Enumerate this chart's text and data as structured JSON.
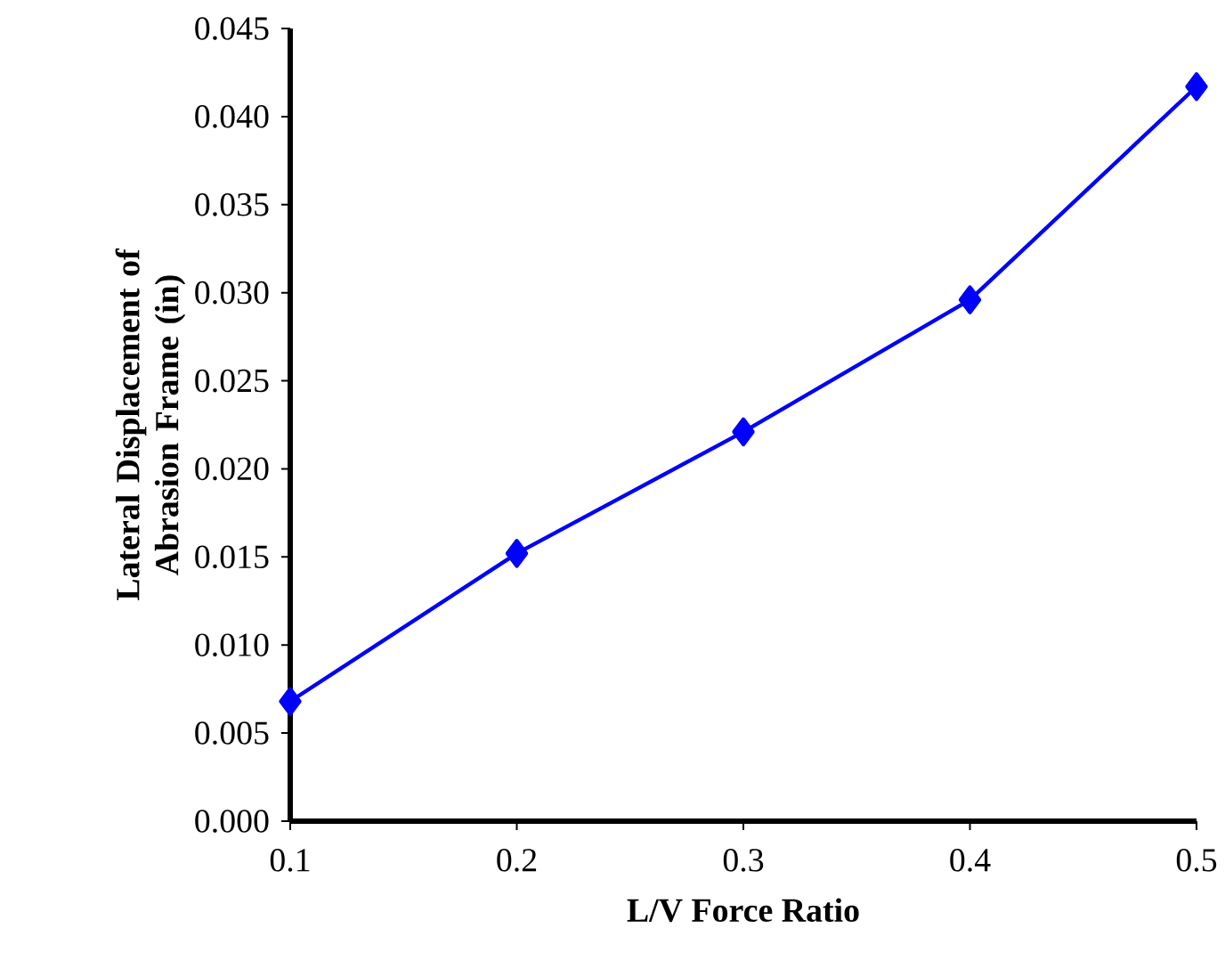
{
  "chart_data": {
    "type": "line",
    "xlabel": "L/V Force Ratio",
    "ylabel": "Lateral Displacement of Abrasion Frame (in)",
    "x": [
      0.1,
      0.2,
      0.3,
      0.4,
      0.5
    ],
    "series": [
      {
        "color": "#0000ff",
        "values": [
          0.0068,
          0.0152,
          0.0221,
          0.0296,
          0.0417
        ]
      }
    ],
    "xlim": [
      0.1,
      0.5
    ],
    "xticks": [
      0.1,
      0.2,
      0.3,
      0.4,
      0.5
    ],
    "ylim": [
      0,
      0.045
    ],
    "yticks": [
      {
        "value": 0,
        "label": "0.000"
      },
      {
        "value": 0.005,
        "label": "0.005"
      },
      {
        "value": 0.01,
        "label": "0.010"
      },
      {
        "value": 0.015,
        "label": "0.015"
      },
      {
        "value": 0.02,
        "label": "0.020"
      },
      {
        "value": 0.025,
        "label": "0.025"
      },
      {
        "value": 0.03,
        "label": "0.030"
      },
      {
        "value": 0.035,
        "label": "0.035"
      },
      {
        "value": 0.04,
        "label": "0.040"
      },
      {
        "value": 0.045,
        "label": "0.045"
      }
    ],
    "marker": "diamond",
    "line_style": "solid",
    "grid": false,
    "legend": false
  }
}
